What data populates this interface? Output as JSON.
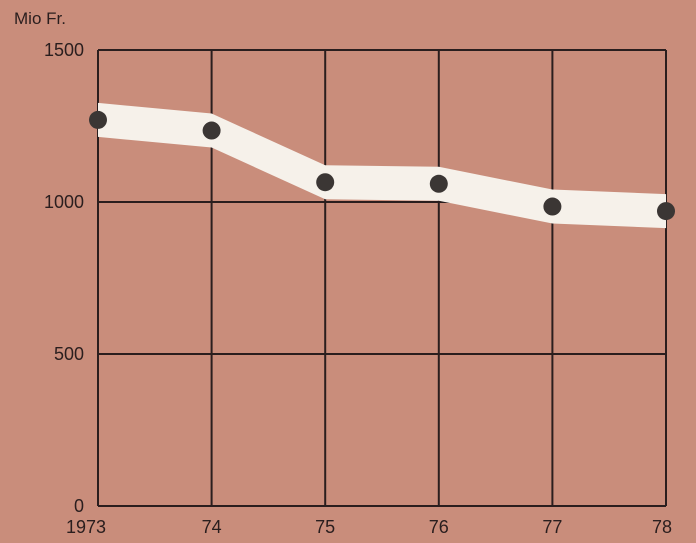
{
  "chart_data": {
    "type": "line",
    "title": "",
    "xlabel": "",
    "ylabel": "Mio Fr.",
    "categories": [
      "1973",
      "74",
      "75",
      "76",
      "77",
      "78"
    ],
    "series": [
      {
        "values": [
          1270,
          1235,
          1065,
          1060,
          985,
          970
        ]
      }
    ],
    "ylim": [
      0,
      1500
    ],
    "yticks": [
      "0",
      "500",
      "1000",
      "1500"
    ],
    "grid": true,
    "legend": "none",
    "colors": {
      "background": "#c98d7b",
      "band": "#f6f1ea",
      "marker": "#3b3634",
      "grid": "#2a1e1e"
    }
  }
}
